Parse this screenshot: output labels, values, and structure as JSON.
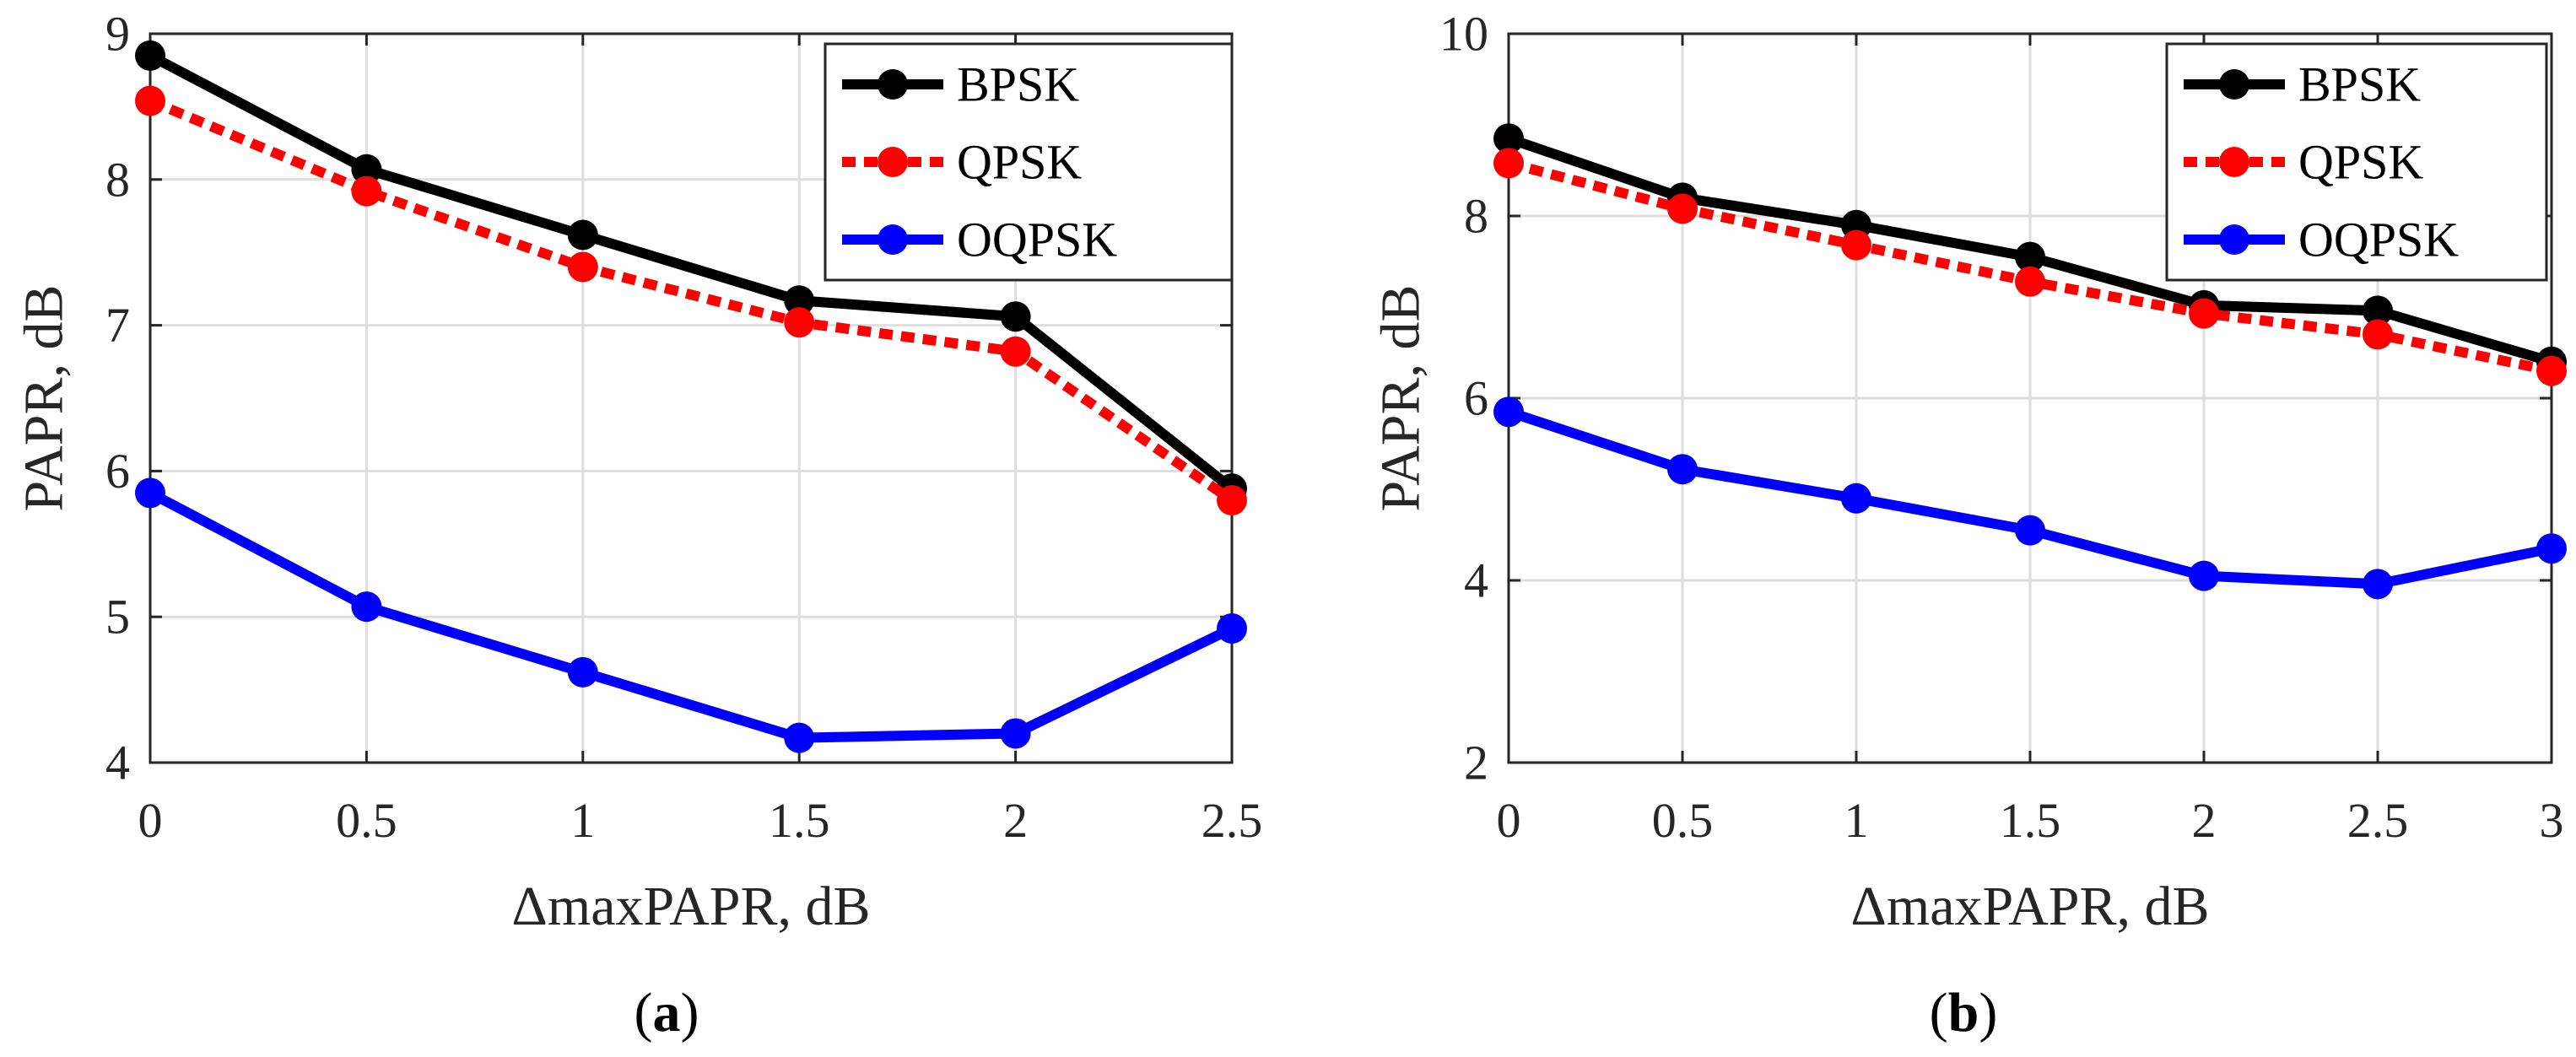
{
  "figure": {
    "panel_labels": [
      {
        "open": "(",
        "letter": "a",
        "close": ")"
      },
      {
        "open": "(",
        "letter": "b",
        "close": ")"
      }
    ]
  },
  "chart_data": [
    {
      "type": "line",
      "title": "",
      "xlabel": "ΔmaxPAPR, dB",
      "ylabel": "PAPR, dB",
      "xlim": [
        0,
        2.5
      ],
      "ylim": [
        4,
        9
      ],
      "xticks": [
        0,
        0.5,
        1,
        1.5,
        2,
        2.5
      ],
      "yticks": [
        4,
        5,
        6,
        7,
        8,
        9
      ],
      "xtick_labels": [
        "0",
        "0.5",
        "1",
        "1.5",
        "2",
        "2.5"
      ],
      "ytick_labels": [
        "4",
        "5",
        "6",
        "7",
        "8",
        "9"
      ],
      "grid": true,
      "legend_position": "top-right",
      "x": [
        0,
        0.5,
        1,
        1.5,
        2,
        2.5
      ],
      "series": [
        {
          "name": "BPSK",
          "color": "#000000",
          "dash": "solid",
          "values": [
            8.85,
            8.07,
            7.62,
            7.17,
            7.06,
            5.88
          ]
        },
        {
          "name": "QPSK",
          "color": "#ff0000",
          "dash": "dotted",
          "values": [
            8.54,
            7.92,
            7.4,
            7.02,
            6.82,
            5.8
          ]
        },
        {
          "name": "OQPSK",
          "color": "#0000ff",
          "dash": "solid",
          "values": [
            5.85,
            5.07,
            4.62,
            4.17,
            4.2,
            4.92
          ]
        }
      ]
    },
    {
      "type": "line",
      "title": "",
      "xlabel": "ΔmaxPAPR, dB",
      "ylabel": "PAPR, dB",
      "xlim": [
        0,
        3
      ],
      "ylim": [
        2,
        10
      ],
      "xticks": [
        0,
        0.5,
        1,
        1.5,
        2,
        2.5,
        3
      ],
      "yticks": [
        2,
        4,
        6,
        8,
        10
      ],
      "xtick_labels": [
        "0",
        "0.5",
        "1",
        "1.5",
        "2",
        "2.5",
        "3"
      ],
      "ytick_labels": [
        "2",
        "4",
        "6",
        "8",
        "10"
      ],
      "grid": true,
      "legend_position": "top-right",
      "x": [
        0,
        0.5,
        1,
        1.5,
        2,
        2.5,
        3
      ],
      "series": [
        {
          "name": "BPSK",
          "color": "#000000",
          "dash": "solid",
          "values": [
            8.85,
            8.2,
            7.9,
            7.55,
            7.02,
            6.96,
            6.4
          ]
        },
        {
          "name": "QPSK",
          "color": "#ff0000",
          "dash": "dotted",
          "values": [
            8.58,
            8.08,
            7.68,
            7.28,
            6.93,
            6.7,
            6.3
          ]
        },
        {
          "name": "OQPSK",
          "color": "#0000ff",
          "dash": "solid",
          "values": [
            5.85,
            5.22,
            4.9,
            4.55,
            4.05,
            3.96,
            4.35
          ]
        }
      ]
    }
  ]
}
